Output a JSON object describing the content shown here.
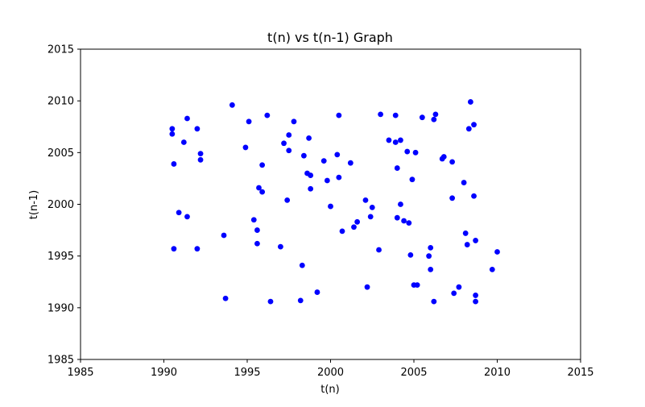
{
  "chart_data": {
    "type": "scatter",
    "title": "t(n) vs t(n-1) Graph",
    "xlabel": "t(n)",
    "ylabel": "t(n-1)",
    "xlim": [
      1985,
      2015
    ],
    "ylim": [
      1985,
      2015
    ],
    "xticks": [
      1985,
      1990,
      1995,
      2000,
      2005,
      2010,
      2015
    ],
    "yticks": [
      1985,
      1990,
      1995,
      2000,
      2005,
      2010,
      2015
    ],
    "xtick_labels": [
      "1985",
      "1990",
      "1995",
      "2000",
      "2005",
      "2010",
      "2015"
    ],
    "ytick_labels": [
      "1985",
      "1990",
      "1995",
      "2000",
      "2005",
      "2010",
      "2015"
    ],
    "grid": false,
    "marker_color": "#0000ff",
    "series": [
      {
        "x": [
          1990.5,
          1990.5,
          1990.6,
          1990.6,
          1990.9,
          1991.2,
          1991.4,
          1991.4,
          1992.0,
          1992.0,
          1992.2,
          1992.2,
          1993.6,
          1993.7,
          1994.1,
          1994.9,
          1995.1,
          1995.4,
          1995.6,
          1995.6,
          1995.7,
          1995.9,
          1995.9,
          1996.2,
          1996.4,
          1997.0,
          1997.2,
          1997.4,
          1997.5,
          1997.5,
          1997.8,
          1998.2,
          1998.3,
          1998.4,
          1998.6,
          1998.7,
          1998.8,
          1998.8,
          1999.2,
          1999.6,
          1999.8,
          2000.0,
          2000.4,
          2000.5,
          2000.5,
          2000.7,
          2001.2,
          2001.4,
          2001.6,
          2002.1,
          2002.2,
          2002.4,
          2002.5,
          2002.9,
          2003.0,
          2003.5,
          2003.9,
          2003.9,
          2004.0,
          2004.0,
          2004.2,
          2004.2,
          2004.4,
          2004.6,
          2004.7,
          2004.8,
          2004.9,
          2005.0,
          2005.1,
          2005.2,
          2005.5,
          2005.9,
          2006.0,
          2006.0,
          2006.2,
          2006.2,
          2006.3,
          2006.7,
          2006.8,
          2007.3,
          2007.3,
          2007.4,
          2007.7,
          2008.0,
          2008.1,
          2008.2,
          2008.3,
          2008.4,
          2008.6,
          2008.6,
          2008.7,
          2008.7,
          2009.7,
          2010.0,
          2008.7
        ],
        "y": [
          2007.3,
          2006.8,
          1995.7,
          2003.9,
          1999.2,
          2006.0,
          2008.3,
          1998.8,
          2007.3,
          1995.7,
          2004.3,
          2004.9,
          1997.0,
          1990.9,
          2009.6,
          2005.5,
          2008.0,
          1998.5,
          1997.5,
          1996.2,
          2001.6,
          2001.2,
          2003.8,
          2008.6,
          1990.6,
          1995.9,
          2005.9,
          2000.4,
          2005.2,
          2006.7,
          2008.0,
          1990.7,
          1994.1,
          2004.7,
          2003.0,
          2006.4,
          2001.5,
          2002.8,
          1991.5,
          2004.2,
          2002.3,
          1999.8,
          2004.8,
          2002.6,
          2008.6,
          1997.4,
          2004.0,
          1997.8,
          1998.3,
          2000.4,
          1992.0,
          1998.8,
          1999.7,
          1995.6,
          2008.7,
          2006.2,
          2006.0,
          2008.6,
          2003.5,
          1998.7,
          2006.2,
          2000.0,
          1998.4,
          2005.1,
          1998.2,
          1995.1,
          2002.4,
          1992.2,
          2005.0,
          1992.2,
          2008.4,
          1995.0,
          1995.8,
          1993.7,
          2008.2,
          1990.6,
          2008.7,
          2004.4,
          2004.6,
          2000.6,
          2004.1,
          1991.4,
          1992.0,
          2002.1,
          1997.2,
          1996.1,
          2007.3,
          2009.9,
          2007.7,
          2000.8,
          1996.5,
          1990.6,
          1993.7,
          1995.4,
          1991.2
        ]
      }
    ]
  }
}
